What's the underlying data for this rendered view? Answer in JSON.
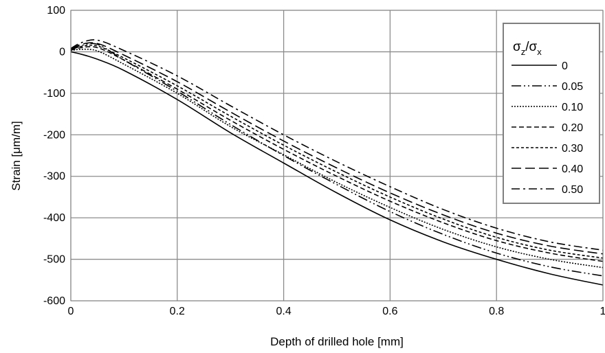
{
  "chart_data": {
    "type": "line",
    "title": "",
    "xlabel": "Depth of drilled hole [mm]",
    "ylabel": "Strain [μm/m]",
    "xlim": [
      0,
      1
    ],
    "ylim": [
      -600,
      100
    ],
    "xticks": [
      0,
      0.2,
      0.4,
      0.6,
      0.8,
      1
    ],
    "xtick_labels": [
      "0",
      "0.2",
      "0.4",
      "0.6",
      "0.8",
      "1"
    ],
    "yticks": [
      100,
      0,
      -100,
      -200,
      -300,
      -400,
      -500,
      -600
    ],
    "ytick_labels": [
      "100",
      "0",
      "-100",
      "-200",
      "-300",
      "-400",
      "-500",
      "-600"
    ],
    "grid": true,
    "legend_position": "top-right",
    "legend_title": {
      "main": "σ",
      "sub1": "z",
      "sep": "/σ",
      "sub2": "x"
    },
    "x": [
      0,
      0.02,
      0.05,
      0.1,
      0.2,
      0.3,
      0.4,
      0.5,
      0.6,
      0.7,
      0.8,
      0.9,
      1.0
    ],
    "series": [
      {
        "name": "0",
        "dash": "solid",
        "values": [
          0,
          -6,
          -18,
          -45,
          -115,
          -195,
          -268,
          -340,
          -405,
          -458,
          -500,
          -535,
          -562
        ]
      },
      {
        "name": "0.05",
        "dash": "dashdotdot",
        "values": [
          5,
          15,
          18,
          -20,
          -95,
          -175,
          -250,
          -320,
          -385,
          -440,
          -485,
          -518,
          -540
        ]
      },
      {
        "name": "0.10",
        "dash": "dot",
        "values": [
          3,
          6,
          2,
          -30,
          -100,
          -180,
          -248,
          -315,
          -375,
          -428,
          -470,
          -500,
          -520
        ]
      },
      {
        "name": "0.20",
        "dash": "dash",
        "values": [
          4,
          10,
          10,
          -20,
          -90,
          -165,
          -235,
          -300,
          -360,
          -412,
          -455,
          -485,
          -505
        ]
      },
      {
        "name": "0.30",
        "dash": "shortdash",
        "values": [
          5,
          13,
          14,
          -15,
          -82,
          -155,
          -225,
          -290,
          -350,
          -403,
          -447,
          -478,
          -497
        ]
      },
      {
        "name": "0.40",
        "dash": "longdash",
        "values": [
          6,
          18,
          20,
          -8,
          -72,
          -145,
          -215,
          -280,
          -340,
          -393,
          -437,
          -468,
          -487
        ]
      },
      {
        "name": "0.50",
        "dash": "dashdot",
        "values": [
          8,
          22,
          28,
          3,
          -58,
          -130,
          -200,
          -265,
          -325,
          -380,
          -425,
          -458,
          -478
        ]
      }
    ]
  }
}
